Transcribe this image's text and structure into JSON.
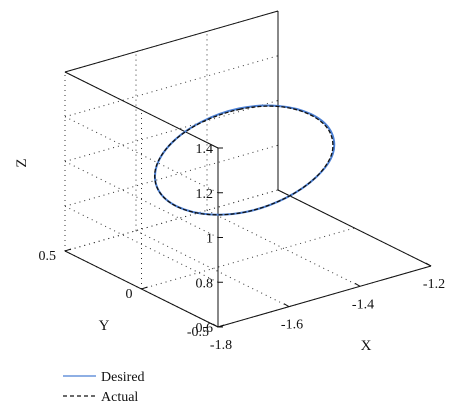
{
  "chart_data": {
    "type": "line",
    "title": "",
    "xlabel": "X",
    "ylabel": "Y",
    "zlabel": "Z",
    "xlim": [
      -1.8,
      -1.2
    ],
    "ylim": [
      -0.5,
      0.5
    ],
    "zlim": [
      0.6,
      1.4
    ],
    "x_ticks": [
      "-1.8",
      "-1.6",
      "-1.4",
      "-1.2"
    ],
    "y_ticks": [
      "-0.5",
      "0",
      "0.5"
    ],
    "z_ticks": [
      "0.6",
      "0.8",
      "1",
      "1.2",
      "1.4"
    ],
    "grid": true,
    "legend_position": "bottom-left",
    "series": [
      {
        "name": "Desired",
        "style": "solid",
        "color": "#4a7fd4",
        "x": [
          -1.5,
          -1.402,
          -1.323,
          -1.278,
          -1.278,
          -1.323,
          -1.402,
          -1.5,
          -1.598,
          -1.677,
          -1.722,
          -1.722,
          -1.677,
          -1.598,
          -1.5
        ],
        "y": [
          0.06,
          0.03,
          0.0,
          -0.025,
          -0.04,
          -0.035,
          -0.02,
          0.0,
          0.025,
          0.05,
          0.07,
          0.085,
          0.09,
          0.08,
          0.06
        ],
        "z": [
          1.25,
          1.227,
          1.165,
          1.078,
          0.982,
          0.895,
          0.833,
          0.81,
          0.833,
          0.895,
          0.982,
          1.078,
          1.165,
          1.227,
          1.25
        ]
      },
      {
        "name": "Actual",
        "style": "dashed",
        "color": "#111111",
        "x": [
          -1.5,
          -1.403,
          -1.325,
          -1.28,
          -1.279,
          -1.322,
          -1.4,
          -1.499,
          -1.597,
          -1.676,
          -1.721,
          -1.723,
          -1.679,
          -1.6,
          -1.5
        ],
        "y": [
          0.055,
          0.028,
          0.002,
          -0.02,
          -0.035,
          -0.032,
          -0.017,
          0.004,
          0.028,
          0.052,
          0.072,
          0.086,
          0.09,
          0.078,
          0.055
        ],
        "z": [
          1.248,
          1.226,
          1.163,
          1.077,
          0.981,
          0.894,
          0.832,
          0.808,
          0.831,
          0.893,
          0.98,
          1.076,
          1.163,
          1.225,
          1.248
        ]
      }
    ]
  },
  "legend": {
    "desired": "Desired",
    "actual": "Actual"
  },
  "colors": {
    "desired": "#4a7fd4",
    "actual": "#111111",
    "axis": "#111111"
  }
}
